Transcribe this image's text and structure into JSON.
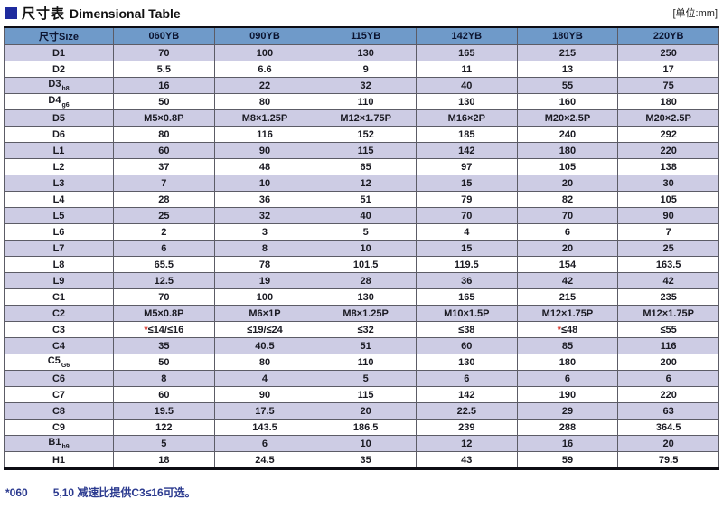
{
  "page": {
    "title_cn": "尺寸表",
    "title_en": "Dimensional Table",
    "unit_label": "[单位:mm]",
    "footnote_marker": "*060",
    "footnote_text": "5,10 减速比提供C3≤16可选。"
  },
  "colors": {
    "title_square": "#1e2b9e",
    "header_bg": "#6f9ac9",
    "row_alt_bg": "#cdcce4",
    "asterisk_red": "#d6342a",
    "footnote_navy": "#2b3a8f"
  },
  "table": {
    "header": [
      "尺寸Size",
      "060YB",
      "090YB",
      "115YB",
      "142YB",
      "180YB",
      "220YB"
    ],
    "rows": [
      {
        "label": "D1",
        "sub": "",
        "values": [
          "70",
          "100",
          "130",
          "165",
          "215",
          "250"
        ]
      },
      {
        "label": "D2",
        "sub": "",
        "values": [
          "5.5",
          "6.6",
          "9",
          "11",
          "13",
          "17"
        ]
      },
      {
        "label": "D3",
        "sub": "h8",
        "values": [
          "16",
          "22",
          "32",
          "40",
          "55",
          "75"
        ]
      },
      {
        "label": "D4",
        "sub": "g6",
        "values": [
          "50",
          "80",
          "110",
          "130",
          "160",
          "180"
        ]
      },
      {
        "label": "D5",
        "sub": "",
        "values": [
          "M5×0.8P",
          "M8×1.25P",
          "M12×1.75P",
          "M16×2P",
          "M20×2.5P",
          "M20×2.5P"
        ]
      },
      {
        "label": "D6",
        "sub": "",
        "values": [
          "80",
          "116",
          "152",
          "185",
          "240",
          "292"
        ]
      },
      {
        "label": "L1",
        "sub": "",
        "values": [
          "60",
          "90",
          "115",
          "142",
          "180",
          "220"
        ]
      },
      {
        "label": "L2",
        "sub": "",
        "values": [
          "37",
          "48",
          "65",
          "97",
          "105",
          "138"
        ]
      },
      {
        "label": "L3",
        "sub": "",
        "values": [
          "7",
          "10",
          "12",
          "15",
          "20",
          "30"
        ]
      },
      {
        "label": "L4",
        "sub": "",
        "values": [
          "28",
          "36",
          "51",
          "79",
          "82",
          "105"
        ]
      },
      {
        "label": "L5",
        "sub": "",
        "values": [
          "25",
          "32",
          "40",
          "70",
          "70",
          "90"
        ]
      },
      {
        "label": "L6",
        "sub": "",
        "values": [
          "2",
          "3",
          "5",
          "4",
          "6",
          "7"
        ]
      },
      {
        "label": "L7",
        "sub": "",
        "values": [
          "6",
          "8",
          "10",
          "15",
          "20",
          "25"
        ]
      },
      {
        "label": "L8",
        "sub": "",
        "values": [
          "65.5",
          "78",
          "101.5",
          "119.5",
          "154",
          "163.5"
        ]
      },
      {
        "label": "L9",
        "sub": "",
        "values": [
          "12.5",
          "19",
          "28",
          "36",
          "42",
          "42"
        ]
      },
      {
        "label": "C1",
        "sub": "",
        "values": [
          "70",
          "100",
          "130",
          "165",
          "215",
          "235"
        ]
      },
      {
        "label": "C2",
        "sub": "",
        "values": [
          "M5×0.8P",
          "M6×1P",
          "M8×1.25P",
          "M10×1.5P",
          "M12×1.75P",
          "M12×1.75P"
        ]
      },
      {
        "label": "C3",
        "sub": "",
        "values": [
          "*≤14/≤16",
          "≤19/≤24",
          "≤32",
          "≤38",
          "*≤48",
          "≤55"
        ]
      },
      {
        "label": "C4",
        "sub": "",
        "values": [
          "35",
          "40.5",
          "51",
          "60",
          "85",
          "116"
        ]
      },
      {
        "label": "C5",
        "sub": "G6",
        "values": [
          "50",
          "80",
          "110",
          "130",
          "180",
          "200"
        ]
      },
      {
        "label": "C6",
        "sub": "",
        "values": [
          "8",
          "4",
          "5",
          "6",
          "6",
          "6"
        ]
      },
      {
        "label": "C7",
        "sub": "",
        "values": [
          "60",
          "90",
          "115",
          "142",
          "190",
          "220"
        ]
      },
      {
        "label": "C8",
        "sub": "",
        "values": [
          "19.5",
          "17.5",
          "20",
          "22.5",
          "29",
          "63"
        ]
      },
      {
        "label": "C9",
        "sub": "",
        "values": [
          "122",
          "143.5",
          "186.5",
          "239",
          "288",
          "364.5"
        ]
      },
      {
        "label": "B1",
        "sub": "h9",
        "values": [
          "5",
          "6",
          "10",
          "12",
          "16",
          "20"
        ]
      },
      {
        "label": "H1",
        "sub": "",
        "values": [
          "18",
          "24.5",
          "35",
          "43",
          "59",
          "79.5"
        ]
      }
    ]
  }
}
